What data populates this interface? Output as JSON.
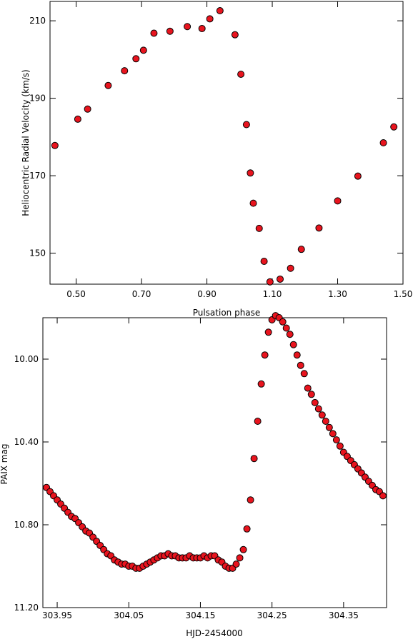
{
  "colors": {
    "marker_fill": "#e8141e",
    "marker_edge": "#000000",
    "axis": "#000000"
  },
  "chart_data": [
    {
      "type": "scatter",
      "title": "",
      "xlabel": "Pulsation phase",
      "ylabel": "Heliocentric Radial Velocity (km/s)",
      "xlim": [
        0.42,
        1.5
      ],
      "ylim": [
        142,
        215
      ],
      "xticks": [
        0.5,
        0.7,
        0.9,
        1.1,
        1.3,
        1.5
      ],
      "xtick_labels": [
        "0.50",
        "0.70",
        "0.90",
        "1.10",
        "1.30",
        "1.50"
      ],
      "yticks": [
        150,
        170,
        190,
        210
      ],
      "ytick_labels": [
        "150",
        "170",
        "190",
        "210"
      ],
      "grid": false,
      "series": [
        {
          "x": [
            0.435,
            0.505,
            0.535,
            0.598,
            0.648,
            0.683,
            0.706,
            0.738,
            0.787,
            0.84,
            0.885,
            0.909,
            0.94,
            0.986,
            1.004,
            1.021,
            1.033,
            1.042,
            1.06,
            1.075,
            1.093,
            1.124,
            1.156,
            1.189,
            1.243,
            1.3,
            1.362,
            1.44,
            1.472
          ],
          "y": [
            177.8,
            184.6,
            187.2,
            193.3,
            197.1,
            200.2,
            202.4,
            206.8,
            207.3,
            208.5,
            208.0,
            210.5,
            212.6,
            206.4,
            196.2,
            183.2,
            170.7,
            162.9,
            156.4,
            147.9,
            142.6,
            143.3,
            146.1,
            151.0,
            156.5,
            163.5,
            169.9,
            178.5,
            182.6
          ]
        }
      ]
    },
    {
      "type": "scatter",
      "title": "",
      "xlabel": "HJD-2454000",
      "ylabel": "PAIX mag",
      "xlim": [
        303.93,
        304.41
      ],
      "ylim": [
        11.2,
        9.8
      ],
      "y_inverted": true,
      "xticks": [
        303.95,
        304.05,
        304.15,
        304.25,
        304.35
      ],
      "xtick_labels": [
        "303.95",
        "304.05",
        "304.15",
        "304.25",
        "304.35"
      ],
      "yticks": [
        10.0,
        10.4,
        10.8,
        11.2
      ],
      "ytick_labels": [
        "10.00",
        "10.40",
        "10.80",
        "11.20"
      ],
      "grid": false,
      "series": [
        {
          "x": [
            303.935,
            303.94,
            303.945,
            303.95,
            303.955,
            303.96,
            303.965,
            303.97,
            303.975,
            303.98,
            303.985,
            303.99,
            303.995,
            304.0,
            304.005,
            304.01,
            304.015,
            304.02,
            304.025,
            304.03,
            304.035,
            304.04,
            304.045,
            304.05,
            304.055,
            304.06,
            304.065,
            304.07,
            304.075,
            304.08,
            304.085,
            304.09,
            304.095,
            304.1,
            304.105,
            304.11,
            304.115,
            304.12,
            304.125,
            304.13,
            304.135,
            304.14,
            304.145,
            304.15,
            304.155,
            304.16,
            304.165,
            304.17,
            304.175,
            304.18,
            304.185,
            304.19,
            304.195,
            304.2,
            304.205,
            304.21,
            304.215,
            304.22,
            304.225,
            304.23,
            304.235,
            304.24,
            304.245,
            304.25,
            304.255,
            304.26,
            304.265,
            304.27,
            304.275,
            304.28,
            304.285,
            304.29,
            304.295,
            304.3,
            304.305,
            304.31,
            304.315,
            304.32,
            304.325,
            304.33,
            304.335,
            304.34,
            304.345,
            304.35,
            304.355,
            304.36,
            304.365,
            304.37,
            304.375,
            304.38,
            304.385,
            304.39,
            304.395,
            304.4,
            304.405
          ],
          "y": [
            10.62,
            10.64,
            10.66,
            10.68,
            10.7,
            10.72,
            10.74,
            10.76,
            10.77,
            10.79,
            10.81,
            10.83,
            10.84,
            10.86,
            10.88,
            10.9,
            10.92,
            10.94,
            10.95,
            10.97,
            10.98,
            10.99,
            10.99,
            11.0,
            11.0,
            11.01,
            11.01,
            11.0,
            10.99,
            10.98,
            10.97,
            10.96,
            10.95,
            10.95,
            10.94,
            10.95,
            10.95,
            10.96,
            10.96,
            10.96,
            10.95,
            10.96,
            10.96,
            10.96,
            10.95,
            10.96,
            10.95,
            10.95,
            10.97,
            10.98,
            11.0,
            11.01,
            11.01,
            10.99,
            10.96,
            10.92,
            10.82,
            10.68,
            10.48,
            10.3,
            10.12,
            9.98,
            9.87,
            9.81,
            9.79,
            9.8,
            9.82,
            9.85,
            9.88,
            9.93,
            9.98,
            10.03,
            10.07,
            10.14,
            10.17,
            10.21,
            10.24,
            10.27,
            10.3,
            10.33,
            10.36,
            10.39,
            10.42,
            10.45,
            10.47,
            10.49,
            10.51,
            10.53,
            10.55,
            10.57,
            10.59,
            10.61,
            10.63,
            10.64,
            10.66
          ]
        }
      ]
    }
  ]
}
